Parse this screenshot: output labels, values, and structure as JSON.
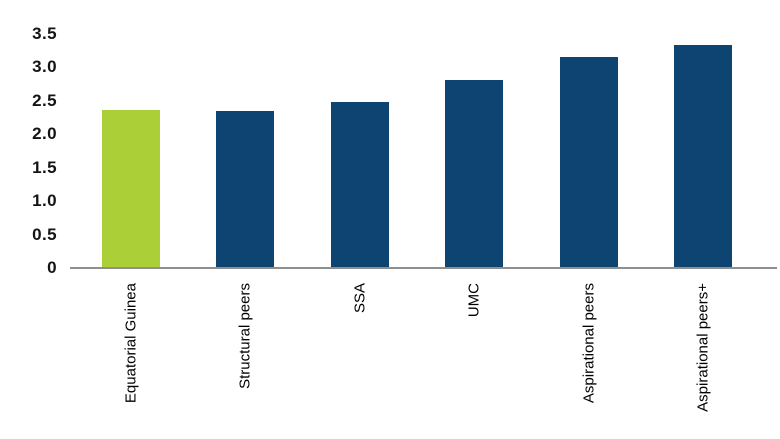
{
  "chart_data": {
    "type": "bar",
    "categories": [
      "Equatorial Guinea",
      "Structural peers",
      "SSA",
      "UMC",
      "Aspirational peers",
      "Aspirational peers+"
    ],
    "values": [
      2.35,
      2.33,
      2.47,
      2.79,
      3.14,
      3.32
    ],
    "bar_colors": [
      "#abd037",
      "#0e4472",
      "#0e4472",
      "#0e4472",
      "#0e4472",
      "#0e4472"
    ],
    "title": "",
    "xlabel": "",
    "ylabel": "",
    "ylim": [
      0,
      3.5
    ],
    "yticks": [
      "0",
      "0.5",
      "1.0",
      "1.5",
      "2.0",
      "2.5",
      "3.0",
      "3.5"
    ],
    "grid": false,
    "legend_position": "none",
    "colors": {
      "highlight": "#abd037",
      "primary": "#0e4472",
      "axis_line": "#8f8f8f",
      "tick_text": "#141414",
      "category_text": "#000000",
      "background": "#ffffff"
    }
  }
}
